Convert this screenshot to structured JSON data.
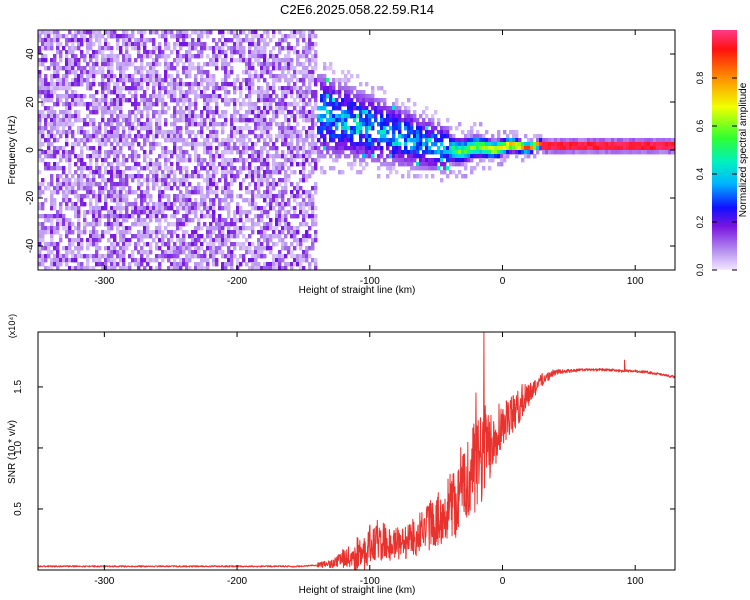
{
  "figure": {
    "title": "C2E6.2025.058.22.59.R14"
  },
  "chart_data": [
    {
      "type": "heatmap",
      "xlabel": "Height of straight line (km)",
      "ylabel": "Frequency (Hz)",
      "xlim": [
        -350,
        130
      ],
      "ylim": [
        -50,
        50
      ],
      "xticks": [
        -300,
        -200,
        -100,
        0,
        100
      ],
      "yticks": [
        -40,
        -20,
        0,
        20,
        40
      ],
      "colorbar": {
        "label": "Normalized spectral amplitude",
        "range": [
          0,
          1
        ],
        "ticks": [
          0.0,
          0.2,
          0.4,
          0.6,
          0.8
        ],
        "tick_labels": [
          "0.0",
          "0.2",
          "0.4",
          "0.6",
          "0.8"
        ],
        "colors": [
          "#f2e6ff",
          "#8a2be2",
          "#0000ff",
          "#00bfff",
          "#00ff66",
          "#ffff00",
          "#ff8c00",
          "#ff0000",
          "#ff3380"
        ]
      },
      "regions": [
        {
          "x_range": [
            -350,
            -140
          ],
          "y_range": [
            -50,
            50
          ],
          "amplitude": 0.05,
          "note": "broadband noise"
        },
        {
          "x_range": [
            -140,
            -40
          ],
          "center_hz": [
            15,
            0
          ],
          "spread_hz": [
            10,
            12
          ],
          "amplitude": 0.2
        },
        {
          "x_range": [
            -40,
            30
          ],
          "center_hz": [
            0,
            2
          ],
          "spread_hz": [
            4,
            2
          ],
          "amplitude": 0.6
        },
        {
          "x_range": [
            30,
            130
          ],
          "center_hz": [
            2,
            2
          ],
          "spread_hz": [
            1,
            1
          ],
          "amplitude": 0.95
        }
      ]
    },
    {
      "type": "line",
      "xlabel": "Height of straight line (km)",
      "ylabel": "SNR (10 * v/v)",
      "y_multiplier": "(x10⁴)",
      "xlim": [
        -350,
        130
      ],
      "ylim": [
        0,
        1.95
      ],
      "xticks": [
        -300,
        -200,
        -100,
        0,
        100
      ],
      "yticks": [
        0.5,
        1.0,
        1.5
      ],
      "ytick_labels": [
        "0.5",
        "1.0",
        "1.5"
      ],
      "color": "#e8322e",
      "x": [
        -350,
        -300,
        -250,
        -200,
        -150,
        -130,
        -110,
        -100,
        -90,
        -80,
        -70,
        -60,
        -50,
        -40,
        -30,
        -20,
        -15,
        -10,
        -5,
        0,
        10,
        20,
        30,
        40,
        60,
        80,
        90,
        100,
        110,
        120,
        130
      ],
      "y": [
        0.03,
        0.03,
        0.03,
        0.03,
        0.03,
        0.05,
        0.12,
        0.2,
        0.22,
        0.2,
        0.25,
        0.32,
        0.4,
        0.5,
        0.65,
        0.85,
        0.95,
        1.05,
        1.12,
        1.2,
        1.3,
        1.45,
        1.56,
        1.62,
        1.64,
        1.64,
        1.63,
        1.63,
        1.62,
        1.6,
        1.58
      ],
      "noise": [
        0,
        0,
        0,
        0,
        0.01,
        0.03,
        0.12,
        0.18,
        0.15,
        0.12,
        0.15,
        0.18,
        0.2,
        0.25,
        0.35,
        0.38,
        0.45,
        0.3,
        0.25,
        0.2,
        0.15,
        0.1,
        0.05,
        0.02,
        0.01,
        0.01,
        0.01,
        0.01,
        0.01,
        0.01,
        0.01
      ],
      "spikes": [
        {
          "x": -14,
          "y": 1.95
        },
        {
          "x": -20,
          "y": 1.45
        },
        {
          "x": 92,
          "y": 1.72
        }
      ]
    }
  ]
}
